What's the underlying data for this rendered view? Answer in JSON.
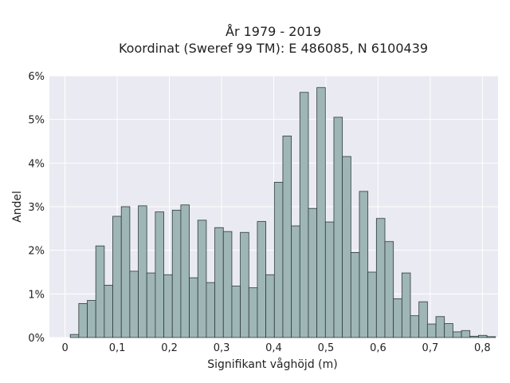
{
  "chart_data": {
    "type": "bar",
    "title_lines": [
      "År 1979 - 2019",
      "Koordinat (Sweref 99 TM): E 486085, N 6100439"
    ],
    "xlabel": "Signifikant våghöjd (m)",
    "ylabel": "Andel",
    "xlim": [
      -0.03,
      0.83
    ],
    "ylim": [
      0,
      6
    ],
    "x_ticks": [
      0,
      0.1,
      0.2,
      0.3,
      0.4,
      0.5,
      0.6,
      0.7,
      0.8
    ],
    "x_tick_labels": [
      "0",
      "0,1",
      "0,2",
      "0,3",
      "0,4",
      "0,5",
      "0,6",
      "0,7",
      "0,8"
    ],
    "y_ticks": [
      0,
      1,
      2,
      3,
      4,
      5,
      6
    ],
    "y_tick_labels": [
      "0%",
      "1%",
      "2%",
      "3%",
      "4%",
      "5%",
      "6%"
    ],
    "bin_start": 0.01,
    "bin_width": 0.0163,
    "values": [
      0.07,
      0.78,
      0.85,
      2.1,
      1.2,
      2.78,
      3.0,
      1.52,
      3.02,
      1.48,
      2.88,
      1.44,
      2.92,
      3.04,
      1.37,
      2.69,
      1.26,
      2.52,
      2.43,
      1.18,
      2.41,
      1.14,
      2.66,
      1.44,
      3.56,
      4.62,
      2.56,
      5.62,
      2.96,
      5.73,
      2.65,
      5.05,
      4.15,
      1.95,
      3.35,
      1.5,
      2.73,
      2.2,
      0.89,
      1.48,
      0.5,
      0.82,
      0.31,
      0.48,
      0.32,
      0.13,
      0.16,
      0.03,
      0.05,
      0.02
    ],
    "grid": true,
    "colors": {
      "plot_bg": "#eaeaf2",
      "bar_fill": "#9fb6b6",
      "bar_edge": "#2f3b3b",
      "grid": "#ffffff"
    }
  }
}
